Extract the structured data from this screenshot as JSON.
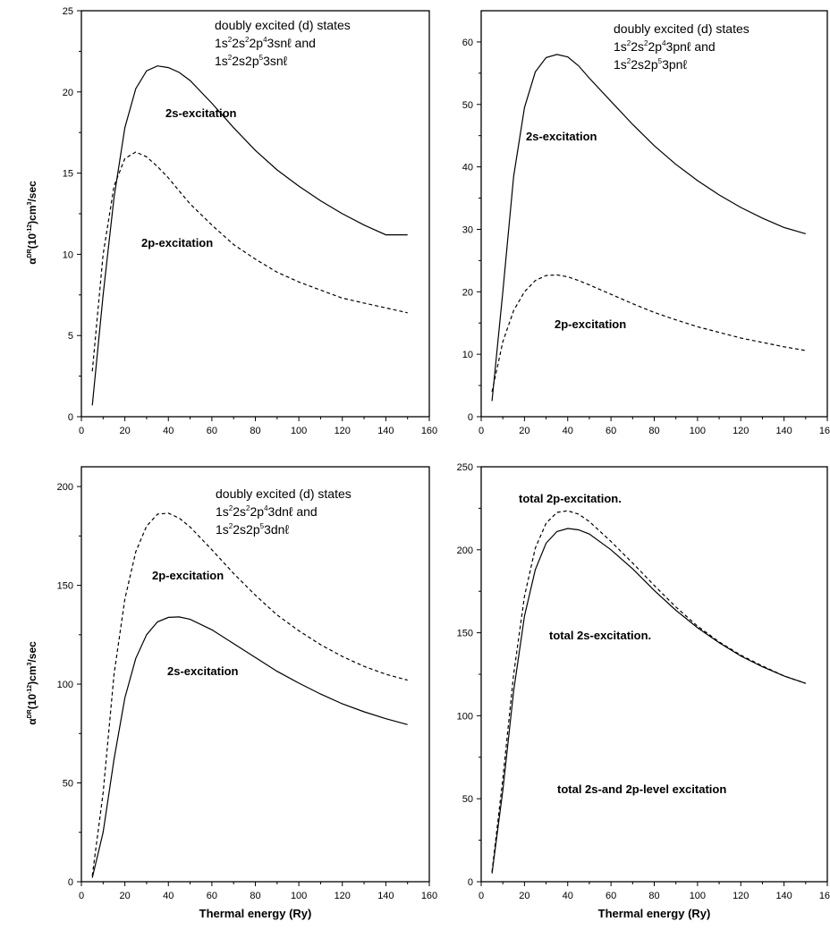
{
  "chart_data": [
    {
      "type": "line",
      "xlim": [
        0,
        160
      ],
      "ylim": [
        0,
        25
      ],
      "xticks": [
        0,
        20,
        40,
        60,
        80,
        100,
        120,
        140,
        160
      ],
      "yticks": [
        0,
        5,
        10,
        15,
        20,
        25
      ],
      "xlabel": "",
      "ylabel": "α^DR(10^-12)cm^3/sec",
      "annotation_lines": [
        "doubly excited (d) states",
        "1s²2s²2p⁴3snℓ and",
        "1s²2s2p⁵3snℓ"
      ],
      "series": [
        {
          "name": "2s-excitation",
          "style": "solid",
          "x": [
            5,
            10,
            15,
            20,
            25,
            30,
            35,
            40,
            45,
            50,
            60,
            70,
            80,
            90,
            100,
            110,
            120,
            130,
            140,
            150
          ],
          "y": [
            0.7,
            7.5,
            13.5,
            17.8,
            20.2,
            21.3,
            21.6,
            21.5,
            21.2,
            20.7,
            19.3,
            17.8,
            16.4,
            15.2,
            14.2,
            13.3,
            12.5,
            11.8,
            11.2,
            11.2
          ]
        },
        {
          "name": "2p-excitation",
          "style": "dashed",
          "x": [
            5,
            10,
            15,
            20,
            25,
            30,
            35,
            40,
            45,
            50,
            60,
            70,
            80,
            90,
            100,
            110,
            120,
            130,
            140,
            150
          ],
          "y": [
            2.8,
            10.0,
            14.2,
            15.9,
            16.3,
            16.0,
            15.4,
            14.7,
            13.9,
            13.1,
            11.8,
            10.6,
            9.7,
            8.9,
            8.3,
            7.8,
            7.3,
            7.0,
            6.7,
            6.4
          ]
        }
      ]
    },
    {
      "type": "line",
      "xlim": [
        0,
        160
      ],
      "ylim": [
        0,
        65
      ],
      "xticks": [
        0,
        20,
        40,
        60,
        80,
        100,
        120,
        140,
        160
      ],
      "yticks": [
        0,
        10,
        20,
        30,
        40,
        50,
        60
      ],
      "xlabel": "",
      "ylabel": "",
      "annotation_lines": [
        "doubly excited (d) states",
        "1s²2s²2p⁴3pnℓ and",
        "1s²2s2p⁵3pnℓ"
      ],
      "series": [
        {
          "name": "2s-excitation",
          "style": "solid",
          "x": [
            5,
            10,
            15,
            20,
            25,
            30,
            35,
            40,
            45,
            50,
            60,
            70,
            80,
            90,
            100,
            110,
            120,
            130,
            140,
            150
          ],
          "y": [
            2.5,
            20.0,
            38.5,
            49.5,
            55.2,
            57.5,
            58.0,
            57.6,
            56.2,
            54.2,
            50.5,
            46.8,
            43.4,
            40.4,
            37.8,
            35.5,
            33.5,
            31.8,
            30.3,
            29.3
          ]
        },
        {
          "name": "2p-excitation",
          "style": "dashed",
          "x": [
            5,
            10,
            15,
            20,
            25,
            30,
            35,
            40,
            45,
            50,
            60,
            70,
            80,
            90,
            100,
            110,
            120,
            130,
            140,
            150
          ],
          "y": [
            4.0,
            12.0,
            17.0,
            20.0,
            21.8,
            22.6,
            22.7,
            22.4,
            21.8,
            21.1,
            19.6,
            18.1,
            16.7,
            15.5,
            14.4,
            13.5,
            12.6,
            11.9,
            11.2,
            10.6
          ]
        }
      ]
    },
    {
      "type": "line",
      "xlim": [
        0,
        160
      ],
      "ylim": [
        0,
        210
      ],
      "xticks": [
        0,
        20,
        40,
        60,
        80,
        100,
        120,
        140,
        160
      ],
      "yticks": [
        0,
        50,
        100,
        150,
        200
      ],
      "xlabel": "Thermal energy (Ry)",
      "ylabel": "α^DR(10^-12)cm^3/sec",
      "annotation_lines": [
        "doubly excited (d) states",
        "1s²2s²2p⁴3dnℓ and",
        "1s²2s2p⁵3dnℓ"
      ],
      "series": [
        {
          "name": "2s-excitation",
          "style": "solid",
          "x": [
            5,
            10,
            15,
            20,
            25,
            30,
            35,
            40,
            45,
            50,
            60,
            70,
            80,
            90,
            100,
            110,
            120,
            130,
            140,
            150
          ],
          "y": [
            2.0,
            25.0,
            62.0,
            93.0,
            113.0,
            125.0,
            131.5,
            133.8,
            134.0,
            132.8,
            127.5,
            120.5,
            113.5,
            106.5,
            100.5,
            95.0,
            90.0,
            86.0,
            82.5,
            79.5
          ]
        },
        {
          "name": "2p-excitation",
          "style": "dashed",
          "x": [
            5,
            10,
            15,
            20,
            25,
            30,
            35,
            40,
            45,
            50,
            60,
            70,
            80,
            90,
            100,
            110,
            120,
            130,
            140,
            150
          ],
          "y": [
            3.0,
            45.0,
            105.0,
            143.0,
            167.0,
            180.0,
            186.0,
            186.5,
            184.0,
            179.5,
            168.0,
            156.0,
            145.0,
            135.0,
            127.0,
            120.0,
            114.0,
            109.0,
            105.0,
            102.0
          ]
        }
      ]
    },
    {
      "type": "line",
      "xlim": [
        0,
        160
      ],
      "ylim": [
        0,
        250
      ],
      "xticks": [
        0,
        20,
        40,
        60,
        80,
        100,
        120,
        140,
        160
      ],
      "yticks": [
        0,
        50,
        100,
        150,
        200,
        250
      ],
      "xlabel": "Thermal energy (Ry)",
      "ylabel": "",
      "annotation_lines": [
        "total 2s-and 2p-level excitation"
      ],
      "series": [
        {
          "name": "total 2s-excitation.",
          "style": "solid",
          "x": [
            5,
            10,
            15,
            20,
            25,
            30,
            35,
            40,
            45,
            50,
            60,
            70,
            80,
            90,
            100,
            110,
            120,
            130,
            140,
            150
          ],
          "y": [
            5.0,
            55.0,
            115.0,
            160.0,
            188.0,
            204.0,
            211.0,
            212.8,
            212.0,
            209.5,
            200.0,
            188.5,
            175.5,
            163.5,
            153.0,
            144.0,
            136.0,
            129.5,
            124.0,
            119.5
          ]
        },
        {
          "name": "total 2p-excitation.",
          "style": "dashed",
          "x": [
            5,
            10,
            15,
            20,
            25,
            30,
            35,
            40,
            45,
            50,
            60,
            70,
            80,
            90,
            100,
            110,
            120,
            130,
            140,
            150
          ],
          "y": [
            6.0,
            62.0,
            125.0,
            172.0,
            201.0,
            216.0,
            222.5,
            223.5,
            221.5,
            217.0,
            205.0,
            192.0,
            178.5,
            165.5,
            154.0,
            144.5,
            136.5,
            130.0,
            124.0,
            119.5
          ]
        }
      ]
    }
  ]
}
